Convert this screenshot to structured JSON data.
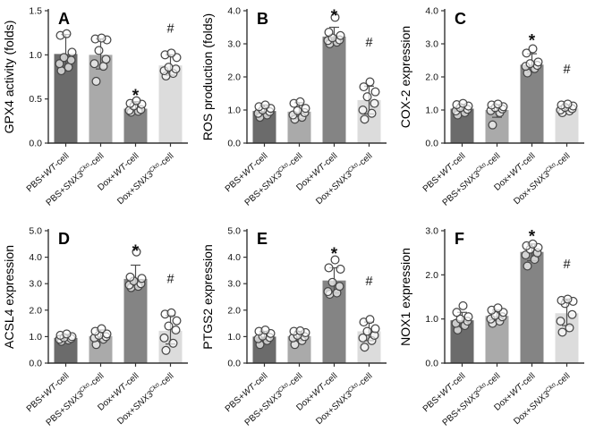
{
  "chart_data": {
    "type": "bar",
    "layout": "2x3-panel-grid",
    "legend_position": "none",
    "grid": false,
    "categories": [
      {
        "text": "PBS+WT-cell",
        "parts": [
          {
            "t": "PBS+"
          },
          {
            "t": "WT",
            "i": 1
          },
          {
            "t": "-cell"
          }
        ]
      },
      {
        "text": "PBS+SNX3Cko-cell",
        "parts": [
          {
            "t": "PBS+"
          },
          {
            "t": "SNX3",
            "i": 1
          },
          {
            "t": "Cko",
            "i": 1,
            "sup": 1
          },
          {
            "t": "-cell"
          }
        ]
      },
      {
        "text": "Dox+WT-cell",
        "parts": [
          {
            "t": "Dox+"
          },
          {
            "t": "WT",
            "i": 1
          },
          {
            "t": "-cell"
          }
        ]
      },
      {
        "text": "Dox+SNX3Cko-cell",
        "parts": [
          {
            "t": "Dox+"
          },
          {
            "t": "SNX3",
            "i": 1
          },
          {
            "t": "Cko",
            "i": 1,
            "sup": 1
          },
          {
            "t": "-cell"
          }
        ]
      }
    ],
    "bar_colors": [
      "#6b6b6b",
      "#aaaaaa",
      "#848484",
      "#dcdcdc"
    ],
    "styles": {
      "background": "#ffffff",
      "axis_color": "#333333",
      "text_color": "#111111",
      "point_fill": "#ffffff",
      "point_stroke": "#474747",
      "error_color": "#4d4d4d",
      "sig_color": "#111111"
    },
    "panels": [
      {
        "letter": "A",
        "ylabel": "GPX4 activity (folds)",
        "ylim": [
          0,
          1.5
        ],
        "yticks": [
          0,
          0.5,
          1,
          1.5
        ],
        "bars": [
          {
            "mean": 1.01,
            "err_lo": 0.82,
            "err_hi": 1.23,
            "points": [
              0.82,
              0.86,
              0.9,
              0.94,
              0.97,
              1.03,
              1.22,
              1.24
            ]
          },
          {
            "mean": 1.0,
            "err_lo": 0.84,
            "err_hi": 1.18,
            "points": [
              0.7,
              0.87,
              0.9,
              0.95,
              1.05,
              1.17,
              1.18,
              1.19
            ]
          },
          {
            "mean": 0.39,
            "err_lo": 0.34,
            "err_hi": 0.47,
            "points": [
              0.35,
              0.36,
              0.37,
              0.38,
              0.42,
              0.44,
              0.45,
              0.48
            ]
          },
          {
            "mean": 0.88,
            "err_lo": 0.77,
            "err_hi": 1.0,
            "points": [
              0.76,
              0.79,
              0.82,
              0.84,
              0.86,
              0.97,
              1.0,
              1.02
            ]
          }
        ],
        "sig": [
          {
            "symbol": "*",
            "group": 2,
            "y": 0.58
          },
          {
            "symbol": "#",
            "group": 3,
            "y": 1.3
          }
        ]
      },
      {
        "letter": "B",
        "ylabel": "ROS production (folds)",
        "ylim": [
          0,
          4
        ],
        "yticks": [
          0,
          1,
          2,
          3,
          4
        ],
        "bars": [
          {
            "mean": 0.97,
            "err_lo": 0.8,
            "err_hi": 1.15,
            "points": [
              0.78,
              0.85,
              0.9,
              0.95,
              1.0,
              1.05,
              1.1,
              1.15
            ]
          },
          {
            "mean": 0.95,
            "err_lo": 0.73,
            "err_hi": 1.22,
            "points": [
              0.72,
              0.78,
              0.85,
              0.92,
              0.98,
              1.05,
              1.2,
              1.25
            ]
          },
          {
            "mean": 3.22,
            "err_lo": 3.0,
            "err_hi": 3.5,
            "points": [
              3.0,
              3.05,
              3.1,
              3.12,
              3.18,
              3.25,
              3.35,
              3.8
            ]
          },
          {
            "mean": 1.3,
            "err_lo": 0.88,
            "err_hi": 1.72,
            "points": [
              0.72,
              0.9,
              1.0,
              1.2,
              1.4,
              1.55,
              1.7,
              1.85
            ]
          }
        ],
        "sig": [
          {
            "symbol": "*",
            "group": 2,
            "y": 3.95
          },
          {
            "symbol": "#",
            "group": 3,
            "y": 3.05
          }
        ]
      },
      {
        "letter": "C",
        "ylabel": "COX-2 expression",
        "ylim": [
          0,
          4
        ],
        "yticks": [
          0,
          1,
          2,
          3,
          4
        ],
        "bars": [
          {
            "mean": 1.04,
            "err_lo": 0.92,
            "err_hi": 1.17,
            "points": [
              0.85,
              0.92,
              0.97,
              1.02,
              1.07,
              1.12,
              1.16,
              1.2
            ]
          },
          {
            "mean": 1.0,
            "err_lo": 0.78,
            "err_hi": 1.16,
            "points": [
              0.55,
              0.92,
              0.98,
              1.03,
              1.07,
              1.1,
              1.15,
              1.18
            ]
          },
          {
            "mean": 2.37,
            "err_lo": 2.15,
            "err_hi": 2.7,
            "points": [
              2.12,
              2.25,
              2.32,
              2.35,
              2.4,
              2.45,
              2.72,
              2.85
            ]
          },
          {
            "mean": 1.05,
            "err_lo": 0.95,
            "err_hi": 1.15,
            "points": [
              0.92,
              0.97,
              1.0,
              1.04,
              1.08,
              1.12,
              1.15,
              1.18
            ]
          }
        ],
        "sig": [
          {
            "symbol": "*",
            "group": 2,
            "y": 3.2
          },
          {
            "symbol": "#",
            "group": 3,
            "y": 2.25
          }
        ]
      },
      {
        "letter": "D",
        "ylabel": "ACSL4 expression",
        "ylim": [
          0,
          5
        ],
        "yticks": [
          0,
          1,
          2,
          3,
          4,
          5
        ],
        "bars": [
          {
            "mean": 0.95,
            "err_lo": 0.85,
            "err_hi": 1.08,
            "points": [
              0.82,
              0.87,
              0.9,
              0.93,
              0.96,
              1.0,
              1.05,
              1.1
            ]
          },
          {
            "mean": 1.02,
            "err_lo": 0.83,
            "err_hi": 1.25,
            "points": [
              0.7,
              0.9,
              0.95,
              1.0,
              1.05,
              1.1,
              1.2,
              1.3
            ]
          },
          {
            "mean": 3.18,
            "err_lo": 2.85,
            "err_hi": 3.7,
            "points": [
              2.85,
              2.9,
              2.95,
              3.0,
              3.1,
              3.2,
              3.25,
              4.2
            ]
          },
          {
            "mean": 1.22,
            "err_lo": 0.72,
            "err_hi": 1.8,
            "points": [
              0.48,
              0.75,
              0.95,
              1.25,
              1.4,
              1.6,
              1.85,
              1.9
            ]
          }
        ],
        "sig": [
          {
            "symbol": "*",
            "group": 2,
            "y": 4.35
          },
          {
            "symbol": "#",
            "group": 3,
            "y": 3.2
          }
        ]
      },
      {
        "letter": "E",
        "ylabel": "PTGS2 expression",
        "ylim": [
          0,
          5
        ],
        "yticks": [
          0,
          1,
          2,
          3,
          4,
          5
        ],
        "bars": [
          {
            "mean": 1.0,
            "err_lo": 0.83,
            "err_hi": 1.2,
            "points": [
              0.7,
              0.85,
              0.92,
              0.97,
              1.02,
              1.12,
              1.2,
              1.25
            ]
          },
          {
            "mean": 1.02,
            "err_lo": 0.85,
            "err_hi": 1.2,
            "points": [
              0.7,
              0.85,
              0.95,
              1.0,
              1.05,
              1.15,
              1.2,
              1.22
            ]
          },
          {
            "mean": 3.12,
            "err_lo": 2.65,
            "err_hi": 3.6,
            "points": [
              2.6,
              2.65,
              2.7,
              2.9,
              3.05,
              3.55,
              3.6,
              3.9
            ]
          },
          {
            "mean": 1.2,
            "err_lo": 0.85,
            "err_hi": 1.55,
            "points": [
              0.6,
              0.85,
              0.95,
              1.05,
              1.2,
              1.3,
              1.55,
              1.65
            ]
          }
        ],
        "sig": [
          {
            "symbol": "*",
            "group": 2,
            "y": 4.25
          },
          {
            "symbol": "#",
            "group": 3,
            "y": 3.1
          }
        ]
      },
      {
        "letter": "F",
        "ylabel": "NOX1 expression",
        "ylim": [
          0,
          3
        ],
        "yticks": [
          0,
          1,
          2,
          3
        ],
        "bars": [
          {
            "mean": 0.97,
            "err_lo": 0.8,
            "err_hi": 1.15,
            "points": [
              0.75,
              0.85,
              0.9,
              0.95,
              1.0,
              1.05,
              1.15,
              1.3
            ]
          },
          {
            "mean": 1.07,
            "err_lo": 0.95,
            "err_hi": 1.2,
            "points": [
              0.9,
              0.95,
              1.0,
              1.05,
              1.08,
              1.15,
              1.2,
              1.25
            ]
          },
          {
            "mean": 2.52,
            "err_lo": 2.32,
            "err_hi": 2.7,
            "points": [
              2.2,
              2.35,
              2.45,
              2.5,
              2.58,
              2.62,
              2.66,
              2.7
            ]
          },
          {
            "mean": 1.13,
            "err_lo": 0.85,
            "err_hi": 1.45,
            "points": [
              0.7,
              0.8,
              0.95,
              1.1,
              1.35,
              1.4,
              1.42,
              1.45
            ]
          }
        ],
        "sig": [
          {
            "symbol": "*",
            "group": 2,
            "y": 2.95
          },
          {
            "symbol": "#",
            "group": 3,
            "y": 2.25
          }
        ]
      }
    ]
  }
}
